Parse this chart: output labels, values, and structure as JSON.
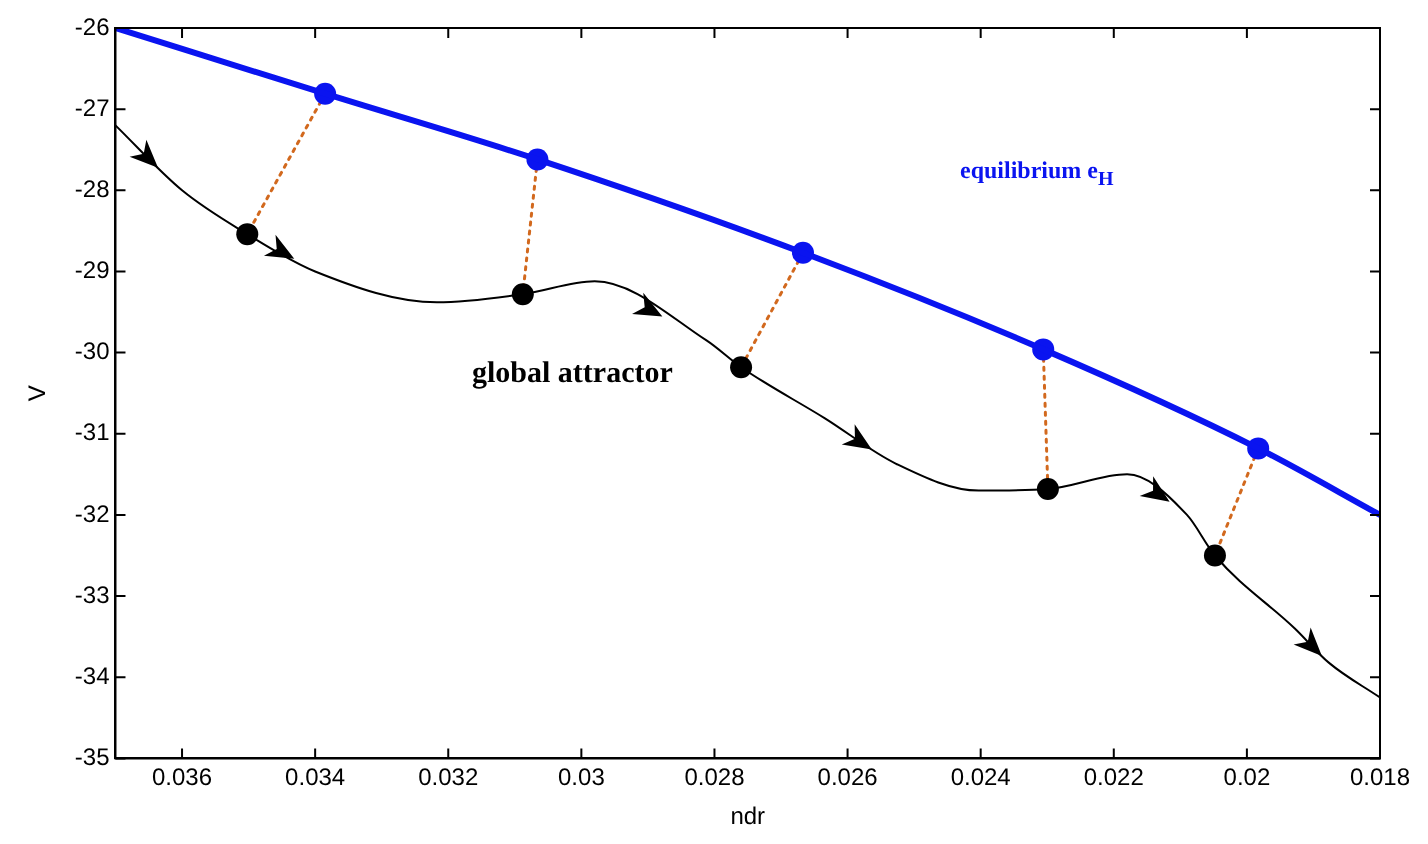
{
  "chart_data": {
    "type": "line",
    "xlabel": "ndr",
    "ylabel": "V",
    "xlim": [
      0.037,
      0.018
    ],
    "xticks": [
      0.036,
      0.034,
      0.032,
      0.03,
      0.028,
      0.026,
      0.024,
      0.022,
      0.02,
      0.018
    ],
    "ylim": [
      -35,
      -26
    ],
    "yticks": [
      -35,
      -34,
      -33,
      -32,
      -31,
      -30,
      -29,
      -28,
      -27,
      -26
    ],
    "grid": false,
    "legend": false,
    "series": [
      {
        "name": "equilibrium e$_{H}$",
        "type": "line",
        "color": "#0a14f0",
        "marker": "none",
        "line_style": "solid",
        "x": [
          0.037,
          0.03385,
          0.03066,
          0.02667,
          0.02306,
          0.01983,
          0.018
        ],
        "values": [
          -26,
          -26.81,
          -27.62,
          -28.77,
          -29.96,
          -31.18,
          -32
        ]
      },
      {
        "name": "global attractor",
        "type": "line",
        "color": "#000000",
        "marker": "none",
        "line_style": "solid",
        "x": [
          0.037,
          0.036,
          0.03502,
          0.034,
          0.03217,
          0.03088,
          0.0298,
          0.02812,
          0.0276,
          0.02634,
          0.02527,
          0.02403,
          0.02299,
          0.0218,
          0.0209,
          0.02048,
          0.01928,
          0.01877,
          0.018
        ],
        "values": [
          -27.2,
          -28.0,
          -28.54,
          -29.0,
          -29.38,
          -29.28,
          -29.12,
          -29.85,
          -30.18,
          -30.81,
          -31.37,
          -31.7,
          -31.68,
          -31.5,
          -32.0,
          -32.5,
          -33.4,
          -33.82,
          -34.25
        ]
      },
      {
        "type": "scatter",
        "color": "#0a14f0",
        "marker": "circle",
        "x": [
          0.03385,
          0.03066,
          0.02667,
          0.02306,
          0.01983
        ],
        "values": [
          -26.81,
          -27.62,
          -28.77,
          -29.96,
          -31.18
        ]
      },
      {
        "type": "scatter",
        "color": "#000000",
        "marker": "circle",
        "x": [
          0.03502,
          0.03088,
          0.0276,
          0.02299,
          0.02048
        ],
        "values": [
          -28.54,
          -29.28,
          -30.18,
          -31.68,
          -32.5
        ]
      },
      {
        "type": "line",
        "color": "#d2691e",
        "marker": "none",
        "line_style": "dotted",
        "x": [
          0.03385,
          0.03502
        ],
        "values": [
          -26.81,
          -28.54
        ]
      },
      {
        "type": "line",
        "color": "#d2691e",
        "marker": "none",
        "line_style": "dotted",
        "x": [
          0.03066,
          0.03088
        ],
        "values": [
          -27.62,
          -29.28
        ]
      },
      {
        "type": "line",
        "color": "#d2691e",
        "marker": "none",
        "line_style": "dotted",
        "x": [
          0.02667,
          0.0276
        ],
        "values": [
          -28.77,
          -30.18
        ]
      },
      {
        "type": "line",
        "color": "#d2691e",
        "marker": "none",
        "line_style": "dotted",
        "x": [
          0.02306,
          0.02299
        ],
        "values": [
          -29.96,
          -31.68
        ]
      },
      {
        "type": "line",
        "color": "#d2691e",
        "marker": "none",
        "line_style": "dotted",
        "x": [
          0.01983,
          0.02048
        ],
        "values": [
          -31.18,
          -32.5
        ]
      }
    ]
  }
}
